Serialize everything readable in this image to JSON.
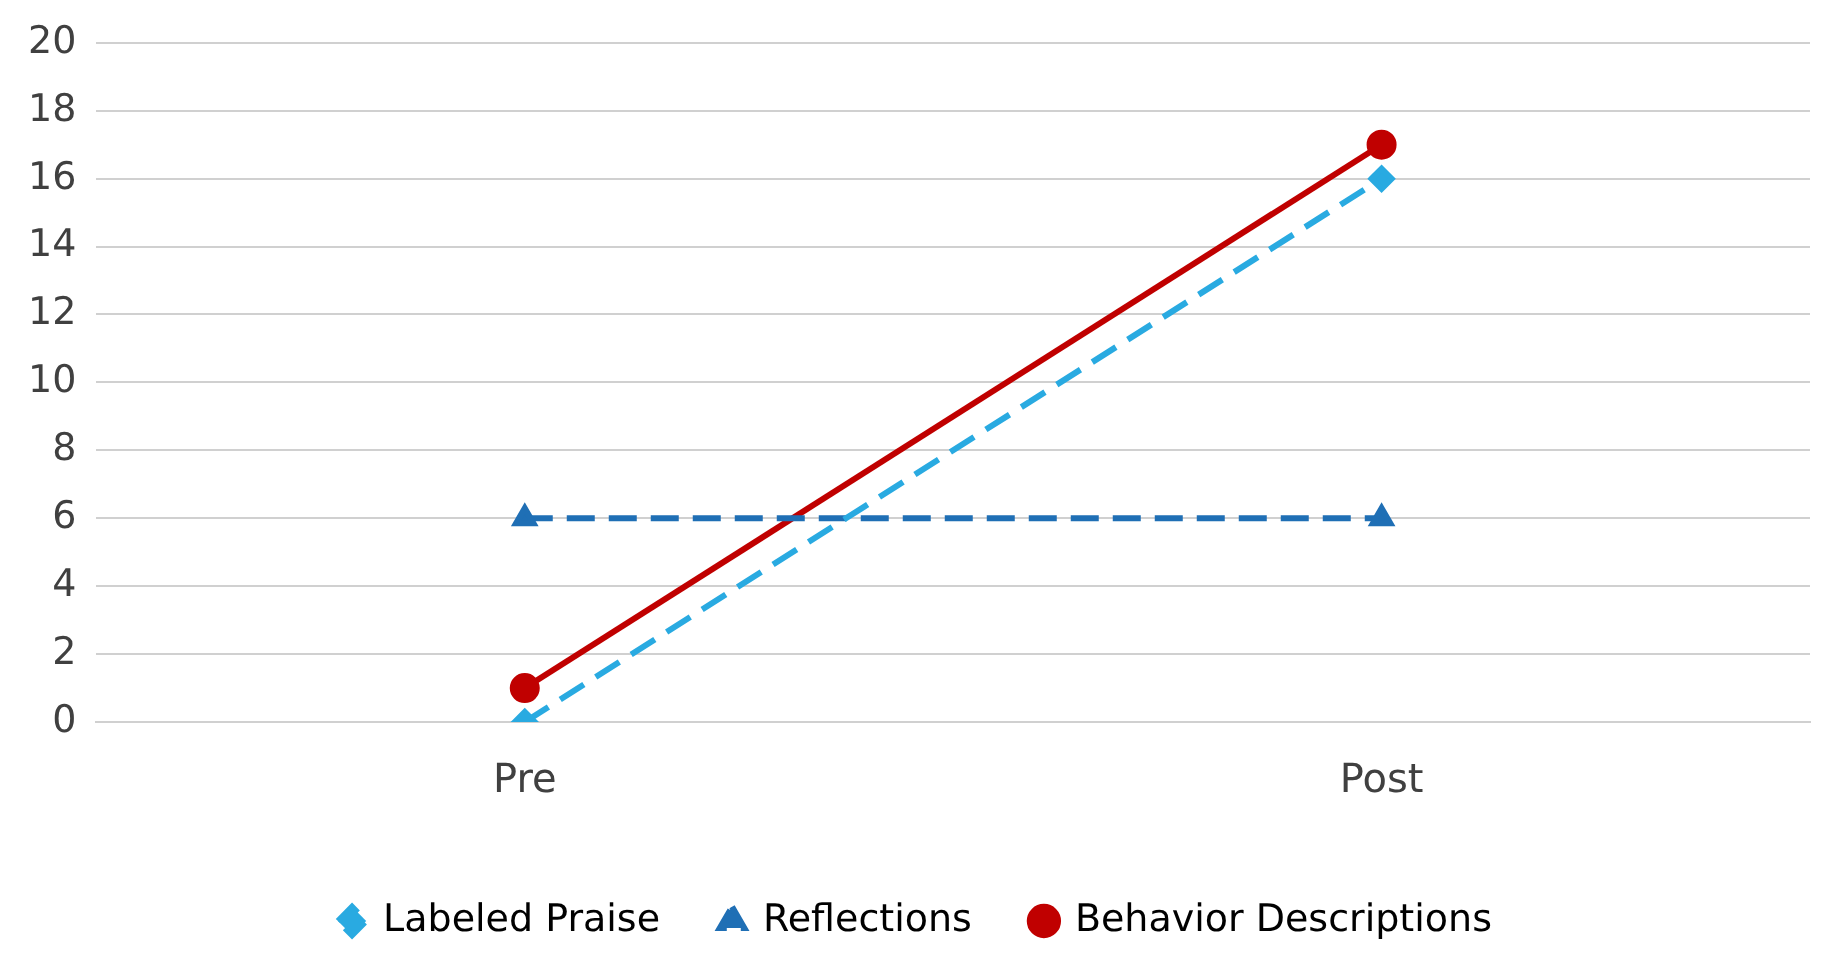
{
  "chart_data": {
    "type": "line",
    "categories": [
      "Pre",
      "Post"
    ],
    "series": [
      {
        "name": "Labeled Praise",
        "color": "#29aae1",
        "values": [
          0,
          16
        ],
        "marker": "diamond",
        "line_style": "dashed"
      },
      {
        "name": "Reflections",
        "color": "#1f6fb5",
        "values": [
          6,
          6
        ],
        "marker": "triangle",
        "line_style": "dashed"
      },
      {
        "name": "Behavior Descriptions",
        "color": "#c00000",
        "values": [
          1,
          17
        ],
        "marker": "circle",
        "line_style": "solid"
      }
    ],
    "ylim": [
      0,
      20
    ],
    "yticks": [
      0,
      2,
      4,
      6,
      8,
      10,
      12,
      14,
      16,
      18,
      20
    ],
    "grid": "y",
    "legend": "bottom"
  }
}
